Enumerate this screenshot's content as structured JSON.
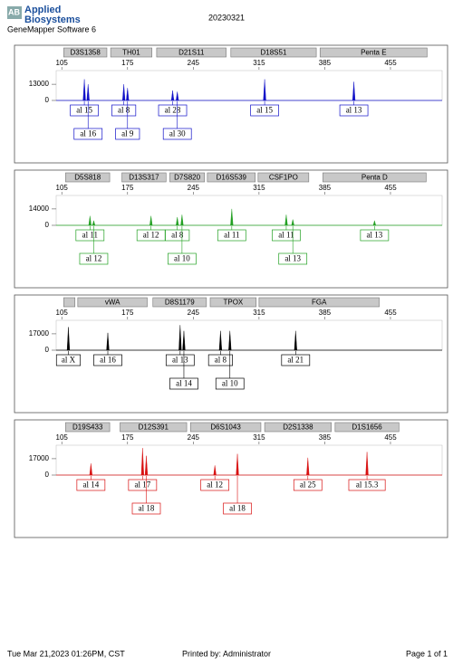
{
  "header": {
    "brand": [
      "Applied",
      "Biosystems"
    ],
    "date": "20230321",
    "software": "GeneMapper Software 6"
  },
  "footer": {
    "printed_on": "Tue Mar 21,2023 01:26PM, CST",
    "printed_by": "Printed by: Administrator",
    "page": "Page 1 of 1"
  },
  "chart_data": [
    {
      "type": "peaks",
      "color": "#1010c8",
      "xlim": [
        99,
        510
      ],
      "xticks": [
        105,
        175,
        245,
        315,
        385,
        455
      ],
      "ylim": [
        0,
        24000
      ],
      "yticks": [
        0,
        13000
      ],
      "markers": [
        {
          "name": "D3S1358",
          "range": [
            107,
            153
          ],
          "peaks": [
            {
              "label": "al 15",
              "x": 129,
              "height": 17000
            },
            {
              "label": "al 16",
              "x": 133,
              "height": 13000
            }
          ]
        },
        {
          "name": "TH01",
          "range": [
            157,
            201
          ],
          "peaks": [
            {
              "label": "al 8",
              "x": 171,
              "height": 13000
            },
            {
              "label": "al 9",
              "x": 175,
              "height": 10000
            }
          ]
        },
        {
          "name": "D21S11",
          "range": [
            206,
            280
          ],
          "peaks": [
            {
              "label": "al 28",
              "x": 223,
              "height": 8000
            },
            {
              "label": "al 30",
              "x": 228,
              "height": 7000
            }
          ]
        },
        {
          "name": "D18S51",
          "range": [
            285,
            376
          ],
          "peaks": [
            {
              "label": "al 15",
              "x": 321,
              "height": 17000
            }
          ]
        },
        {
          "name": "Penta E",
          "range": [
            380,
            494
          ],
          "peaks": [
            {
              "label": "al 13",
              "x": 416,
              "height": 15000
            }
          ]
        }
      ]
    },
    {
      "type": "peaks",
      "color": "#22a022",
      "xlim": [
        99,
        510
      ],
      "xticks": [
        105,
        175,
        245,
        315,
        385,
        455
      ],
      "ylim": [
        0,
        25500
      ],
      "yticks": [
        0,
        14000
      ],
      "markers": [
        {
          "name": "D5S818",
          "range": [
            109,
            156
          ],
          "peaks": [
            {
              "label": "al 11",
              "x": 135,
              "height": 8000
            },
            {
              "label": "al 12",
              "x": 139,
              "height": 4000
            }
          ]
        },
        {
          "name": "D13S317",
          "range": [
            169,
            216
          ],
          "peaks": [
            {
              "label": "al 12",
              "x": 200,
              "height": 8000
            }
          ]
        },
        {
          "name": "D7S820",
          "range": [
            220,
            257
          ],
          "peaks": [
            {
              "label": "al 8",
              "x": 228,
              "height": 7000
            },
            {
              "label": "al 10",
              "x": 233,
              "height": 9000
            }
          ]
        },
        {
          "name": "D16S539",
          "range": [
            260,
            311
          ],
          "peaks": [
            {
              "label": "al 11",
              "x": 286,
              "height": 14000
            }
          ]
        },
        {
          "name": "CSF1PO",
          "range": [
            314,
            368
          ],
          "peaks": [
            {
              "label": "al 11",
              "x": 344,
              "height": 9000
            },
            {
              "label": "al 13",
              "x": 351,
              "height": 5000
            }
          ]
        },
        {
          "name": "Penta D",
          "range": [
            383,
            493
          ],
          "peaks": [
            {
              "label": "al 13",
              "x": 438,
              "height": 4000
            }
          ]
        }
      ]
    },
    {
      "type": "peaks",
      "color": "#000000",
      "xlim": [
        99,
        510
      ],
      "xticks": [
        105,
        175,
        245,
        315,
        385,
        455
      ],
      "ylim": [
        0,
        31000
      ],
      "yticks": [
        0,
        17000
      ],
      "markers": [
        {
          "name": null,
          "range": [
            107,
            119
          ],
          "peaks": [
            {
              "label": "al X",
              "x": 112,
              "height": 24000
            }
          ]
        },
        {
          "name": "vWA",
          "range": [
            122,
            196
          ],
          "peaks": [
            {
              "label": "al 16",
              "x": 154,
              "height": 18000
            }
          ]
        },
        {
          "name": "D8S1179",
          "range": [
            202,
            259
          ],
          "peaks": [
            {
              "label": "al 13",
              "x": 231,
              "height": 26000
            },
            {
              "label": "al 14",
              "x": 235,
              "height": 20000
            }
          ]
        },
        {
          "name": "TPOX",
          "range": [
            263,
            312
          ],
          "peaks": [
            {
              "label": "al 8",
              "x": 274,
              "height": 20000
            },
            {
              "label": "al 10",
              "x": 284,
              "height": 20000
            }
          ]
        },
        {
          "name": "FGA",
          "range": [
            315,
            443
          ],
          "peaks": [
            {
              "label": "al 21",
              "x": 354,
              "height": 20000
            }
          ]
        }
      ]
    },
    {
      "type": "peaks",
      "color": "#d81010",
      "xlim": [
        99,
        510
      ],
      "xticks": [
        105,
        175,
        245,
        315,
        385,
        455
      ],
      "ylim": [
        0,
        31000
      ],
      "yticks": [
        0,
        17000
      ],
      "markers": [
        {
          "name": "D19S433",
          "range": [
            109,
            156
          ],
          "peaks": [
            {
              "label": "al 14",
              "x": 136,
              "height": 12000
            }
          ]
        },
        {
          "name": "D12S391",
          "range": [
            167,
            238
          ],
          "peaks": [
            {
              "label": "al 17",
              "x": 191,
              "height": 28000
            },
            {
              "label": "al 18",
              "x": 195,
              "height": 20000
            }
          ]
        },
        {
          "name": "D6S1043",
          "range": [
            242,
            317
          ],
          "peaks": [
            {
              "label": "al 12",
              "x": 268,
              "height": 10000
            },
            {
              "label": "al 18",
              "x": 292,
              "height": 22000
            }
          ]
        },
        {
          "name": "D2S1338",
          "range": [
            321,
            392
          ],
          "peaks": [
            {
              "label": "al 25",
              "x": 367,
              "height": 18000
            }
          ]
        },
        {
          "name": "D1S1656",
          "range": [
            396,
            464
          ],
          "peaks": [
            {
              "label": "al 15.3",
              "x": 430,
              "height": 24000
            }
          ]
        }
      ]
    }
  ]
}
